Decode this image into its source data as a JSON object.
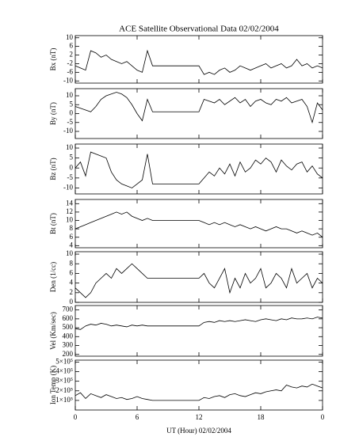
{
  "chart_data": [
    {
      "type": "line",
      "title": "ACE Satellite Observational Data   02/02/2004",
      "ylabel": "Bx (nT)",
      "x": [
        0,
        0.5,
        1,
        1.5,
        2,
        2.5,
        3,
        3.5,
        4,
        4.5,
        5,
        5.5,
        6,
        6.5,
        7,
        7.5,
        8,
        8.5,
        9,
        9.5,
        10,
        10.5,
        11,
        11.5,
        12,
        12.5,
        13,
        13.5,
        14,
        14.5,
        15,
        15.5,
        16,
        16.5,
        17,
        17.5,
        18,
        18.5,
        19,
        19.5,
        20,
        20.5,
        21,
        21.5,
        22,
        22.5,
        23,
        23.5,
        24
      ],
      "xlim": [
        0,
        24
      ],
      "xticks": [
        0,
        6,
        12,
        18,
        {
          "value": 24,
          "label": "0"
        }
      ],
      "ylim": [
        -11,
        11
      ],
      "yticks": [
        -10,
        -6,
        -2,
        2,
        6,
        10
      ],
      "series": [
        {
          "color": "#000000",
          "values": [
            -3,
            -4,
            -5,
            4,
            3,
            1,
            2,
            0,
            -1,
            -2,
            -1,
            -3,
            -5,
            -6,
            4,
            -3,
            -3,
            -3,
            -3,
            -3,
            -3,
            -3,
            -3,
            -3,
            -3,
            -7,
            -6,
            -7,
            -5,
            -4,
            -6,
            -5,
            -3,
            -4,
            -5,
            -4,
            -3,
            -2,
            -4,
            -3,
            -2,
            -4,
            -3,
            0,
            -3,
            -2,
            -4,
            -3,
            -4
          ]
        }
      ]
    },
    {
      "type": "line",
      "ylabel": "By (nT)",
      "x": [
        0,
        0.5,
        1,
        1.5,
        2,
        2.5,
        3,
        3.5,
        4,
        4.5,
        5,
        5.5,
        6,
        6.5,
        7,
        7.5,
        8,
        8.5,
        9,
        9.5,
        10,
        10.5,
        11,
        11.5,
        12,
        12.5,
        13,
        13.5,
        14,
        14.5,
        15,
        15.5,
        16,
        16.5,
        17,
        17.5,
        18,
        18.5,
        19,
        19.5,
        20,
        20.5,
        21,
        21.5,
        22,
        22.5,
        23,
        23.5,
        24
      ],
      "xlim": [
        0,
        24
      ],
      "xticks": [
        0,
        6,
        12,
        18,
        {
          "value": 24,
          "label": "0"
        }
      ],
      "ylim": [
        -14,
        14
      ],
      "yticks": [
        -10,
        -5,
        0,
        5,
        10
      ],
      "series": [
        {
          "color": "#000000",
          "values": [
            4,
            3,
            2,
            1,
            4,
            8,
            10,
            11,
            12,
            11,
            9,
            5,
            0,
            -4,
            8,
            1,
            1,
            1,
            1,
            1,
            1,
            1,
            1,
            1,
            1,
            8,
            7,
            6,
            8,
            5,
            7,
            9,
            6,
            8,
            4,
            7,
            8,
            6,
            5,
            8,
            7,
            9,
            6,
            7,
            8,
            4,
            -5,
            6,
            2
          ]
        }
      ]
    },
    {
      "type": "line",
      "ylabel": "Bz (nT)",
      "x": [
        0,
        0.5,
        1,
        1.5,
        2,
        2.5,
        3,
        3.5,
        4,
        4.5,
        5,
        5.5,
        6,
        6.5,
        7,
        7.5,
        8,
        8.5,
        9,
        9.5,
        10,
        10.5,
        11,
        11.5,
        12,
        12.5,
        13,
        13.5,
        14,
        14.5,
        15,
        15.5,
        16,
        16.5,
        17,
        17.5,
        18,
        18.5,
        19,
        19.5,
        20,
        20.5,
        21,
        21.5,
        22,
        22.5,
        23,
        23.5,
        24
      ],
      "xlim": [
        0,
        24
      ],
      "xticks": [
        0,
        6,
        12,
        18,
        {
          "value": 24,
          "label": "0"
        }
      ],
      "ylim": [
        -13,
        12
      ],
      "yticks": [
        -10,
        -5,
        0,
        5,
        10
      ],
      "series": [
        {
          "color": "#000000",
          "values": [
            0,
            3,
            -4,
            8,
            7,
            6,
            5,
            -2,
            -6,
            -8,
            -9,
            -10,
            -8,
            -6,
            7,
            -8,
            -8,
            -8,
            -8,
            -8,
            -8,
            -8,
            -8,
            -8,
            -8,
            -5,
            -2,
            -4,
            0,
            -3,
            2,
            -4,
            3,
            -2,
            0,
            4,
            2,
            5,
            3,
            -2,
            4,
            1,
            -1,
            2,
            3,
            -2,
            1,
            -3,
            -5
          ]
        }
      ]
    },
    {
      "type": "line",
      "ylabel": "Bt (nT)",
      "x": [
        0,
        0.5,
        1,
        1.5,
        2,
        2.5,
        3,
        3.5,
        4,
        4.5,
        5,
        5.5,
        6,
        6.5,
        7,
        7.5,
        8,
        8.5,
        9,
        9.5,
        10,
        10.5,
        11,
        11.5,
        12,
        12.5,
        13,
        13.5,
        14,
        14.5,
        15,
        15.5,
        16,
        16.5,
        17,
        17.5,
        18,
        18.5,
        19,
        19.5,
        20,
        20.5,
        21,
        21.5,
        22,
        22.5,
        23,
        23.5,
        24
      ],
      "xlim": [
        0,
        24
      ],
      "xticks": [
        0,
        6,
        12,
        18,
        {
          "value": 24,
          "label": "0"
        }
      ],
      "ylim": [
        3.5,
        15
      ],
      "yticks": [
        4,
        6,
        8,
        10,
        12,
        14
      ],
      "series": [
        {
          "color": "#000000",
          "values": [
            8,
            8.5,
            9,
            9.5,
            10,
            10.5,
            11,
            11.5,
            12,
            11.5,
            12,
            11,
            10.5,
            10,
            10.5,
            10,
            10,
            10,
            10,
            10,
            10,
            10,
            10,
            10,
            10,
            9.5,
            9,
            9.5,
            9,
            9.5,
            9,
            8.5,
            9,
            8.5,
            8,
            8.5,
            8,
            7.5,
            8,
            8.5,
            8,
            8,
            7.5,
            7,
            7.5,
            7,
            6.5,
            7,
            6
          ]
        }
      ]
    },
    {
      "type": "line",
      "ylabel": "Den (1/cc)",
      "x": [
        0,
        0.5,
        1,
        1.5,
        2,
        2.5,
        3,
        3.5,
        4,
        4.5,
        5,
        5.5,
        6,
        6.5,
        7,
        7.5,
        8,
        8.5,
        9,
        9.5,
        10,
        10.5,
        11,
        11.5,
        12,
        12.5,
        13,
        13.5,
        14,
        14.5,
        15,
        15.5,
        16,
        16.5,
        17,
        17.5,
        18,
        18.5,
        19,
        19.5,
        20,
        20.5,
        21,
        21.5,
        22,
        22.5,
        23,
        23.5,
        24
      ],
      "xlim": [
        0,
        24
      ],
      "xticks": [
        0,
        6,
        12,
        18,
        {
          "value": 24,
          "label": "0"
        }
      ],
      "ylim": [
        0,
        10.5
      ],
      "yticks": [
        0,
        2,
        4,
        6,
        8,
        10
      ],
      "series": [
        {
          "color": "#000000",
          "values": [
            3,
            2,
            1,
            2,
            4,
            5,
            6,
            5,
            7,
            6,
            7,
            8,
            7,
            6,
            5,
            5,
            5,
            5,
            5,
            5,
            5,
            5,
            5,
            5,
            5,
            6,
            4,
            3,
            5,
            7,
            2,
            5,
            3,
            6,
            4,
            5,
            7,
            3,
            4,
            6,
            5,
            3,
            7,
            4,
            5,
            6,
            3,
            5,
            4
          ]
        }
      ]
    },
    {
      "type": "line",
      "ylabel": "Vel (Km/sec)",
      "x": [
        0,
        0.5,
        1,
        1.5,
        2,
        2.5,
        3,
        3.5,
        4,
        4.5,
        5,
        5.5,
        6,
        6.5,
        7,
        7.5,
        8,
        8.5,
        9,
        9.5,
        10,
        10.5,
        11,
        11.5,
        12,
        12.5,
        13,
        13.5,
        14,
        14.5,
        15,
        15.5,
        16,
        16.5,
        17,
        17.5,
        18,
        18.5,
        19,
        19.5,
        20,
        20.5,
        21,
        21.5,
        22,
        22.5,
        23,
        23.5,
        24
      ],
      "xlim": [
        0,
        24
      ],
      "xticks": [
        0,
        6,
        12,
        18,
        {
          "value": 24,
          "label": "0"
        }
      ],
      "ylim": [
        180,
        750
      ],
      "yticks": [
        200,
        300,
        400,
        500,
        600,
        700
      ],
      "series": [
        {
          "color": "#000000",
          "values": [
            490,
            480,
            520,
            540,
            530,
            550,
            540,
            520,
            530,
            520,
            510,
            530,
            520,
            530,
            520,
            520,
            520,
            520,
            520,
            520,
            520,
            520,
            520,
            520,
            520,
            560,
            570,
            560,
            580,
            570,
            580,
            570,
            580,
            590,
            580,
            570,
            590,
            600,
            590,
            580,
            600,
            590,
            610,
            600,
            600,
            610,
            600,
            620,
            610
          ]
        }
      ]
    },
    {
      "type": "line",
      "ylabel": "Ion Temp (K)",
      "xlabel": "UT (Hour)   02/02/2004",
      "x": [
        0,
        0.5,
        1,
        1.5,
        2,
        2.5,
        3,
        3.5,
        4,
        4.5,
        5,
        5.5,
        6,
        6.5,
        7,
        7.5,
        8,
        8.5,
        9,
        9.5,
        10,
        10.5,
        11,
        11.5,
        12,
        12.5,
        13,
        13.5,
        14,
        14.5,
        15,
        15.5,
        16,
        16.5,
        17,
        17.5,
        18,
        18.5,
        19,
        19.5,
        20,
        20.5,
        21,
        21.5,
        22,
        22.5,
        23,
        23.5,
        24
      ],
      "xlim": [
        0,
        24
      ],
      "xticks": [
        0,
        6,
        12,
        18,
        {
          "value": 24,
          "label": "0"
        }
      ],
      "ylim": [
        0,
        520000
      ],
      "yticks": [
        {
          "value": 100000,
          "label": "1×10⁵"
        },
        {
          "value": 200000,
          "label": "2×10⁵"
        },
        {
          "value": 300000,
          "label": "3×10⁵"
        },
        {
          "value": 400000,
          "label": "4×10⁵"
        },
        {
          "value": 500000,
          "label": "5×10⁵"
        }
      ],
      "series": [
        {
          "color": "#000000",
          "values": [
            150000,
            180000,
            120000,
            170000,
            150000,
            130000,
            160000,
            140000,
            120000,
            130000,
            110000,
            120000,
            140000,
            120000,
            110000,
            100000,
            100000,
            100000,
            100000,
            100000,
            100000,
            100000,
            100000,
            100000,
            100000,
            130000,
            120000,
            140000,
            150000,
            130000,
            160000,
            170000,
            150000,
            140000,
            160000,
            180000,
            170000,
            190000,
            200000,
            210000,
            200000,
            260000,
            240000,
            230000,
            250000,
            240000,
            270000,
            250000,
            230000
          ]
        }
      ]
    }
  ]
}
